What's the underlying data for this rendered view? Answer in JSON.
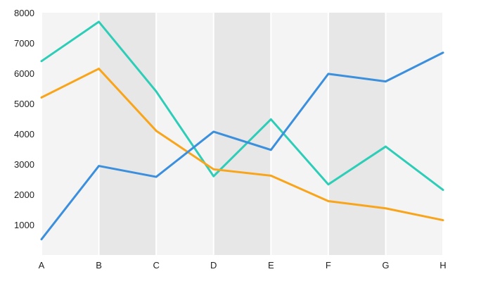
{
  "chart_data": {
    "type": "line",
    "categories": [
      "A",
      "B",
      "C",
      "D",
      "E",
      "F",
      "G",
      "H"
    ],
    "y_ticks": [
      1000,
      2000,
      3000,
      4000,
      5000,
      6000,
      7000,
      8000
    ],
    "ylim": [
      0,
      8000
    ],
    "grid": "vertical white lines with alternating shaded bands",
    "legend": "none",
    "band_colors": [
      "#f4f4f4",
      "#e6e7e6"
    ],
    "series": [
      {
        "color": "#2ecdb8",
        "values": [
          6400,
          7700,
          5400,
          2600,
          4480,
          2330,
          3580,
          2150
        ]
      },
      {
        "color": "#f9a51c",
        "values": [
          5200,
          6150,
          4100,
          2830,
          2620,
          1780,
          1540,
          1150
        ]
      },
      {
        "color": "#3b8fdc",
        "values": [
          520,
          2940,
          2580,
          4070,
          3470,
          5980,
          5730,
          6680
        ]
      }
    ]
  }
}
